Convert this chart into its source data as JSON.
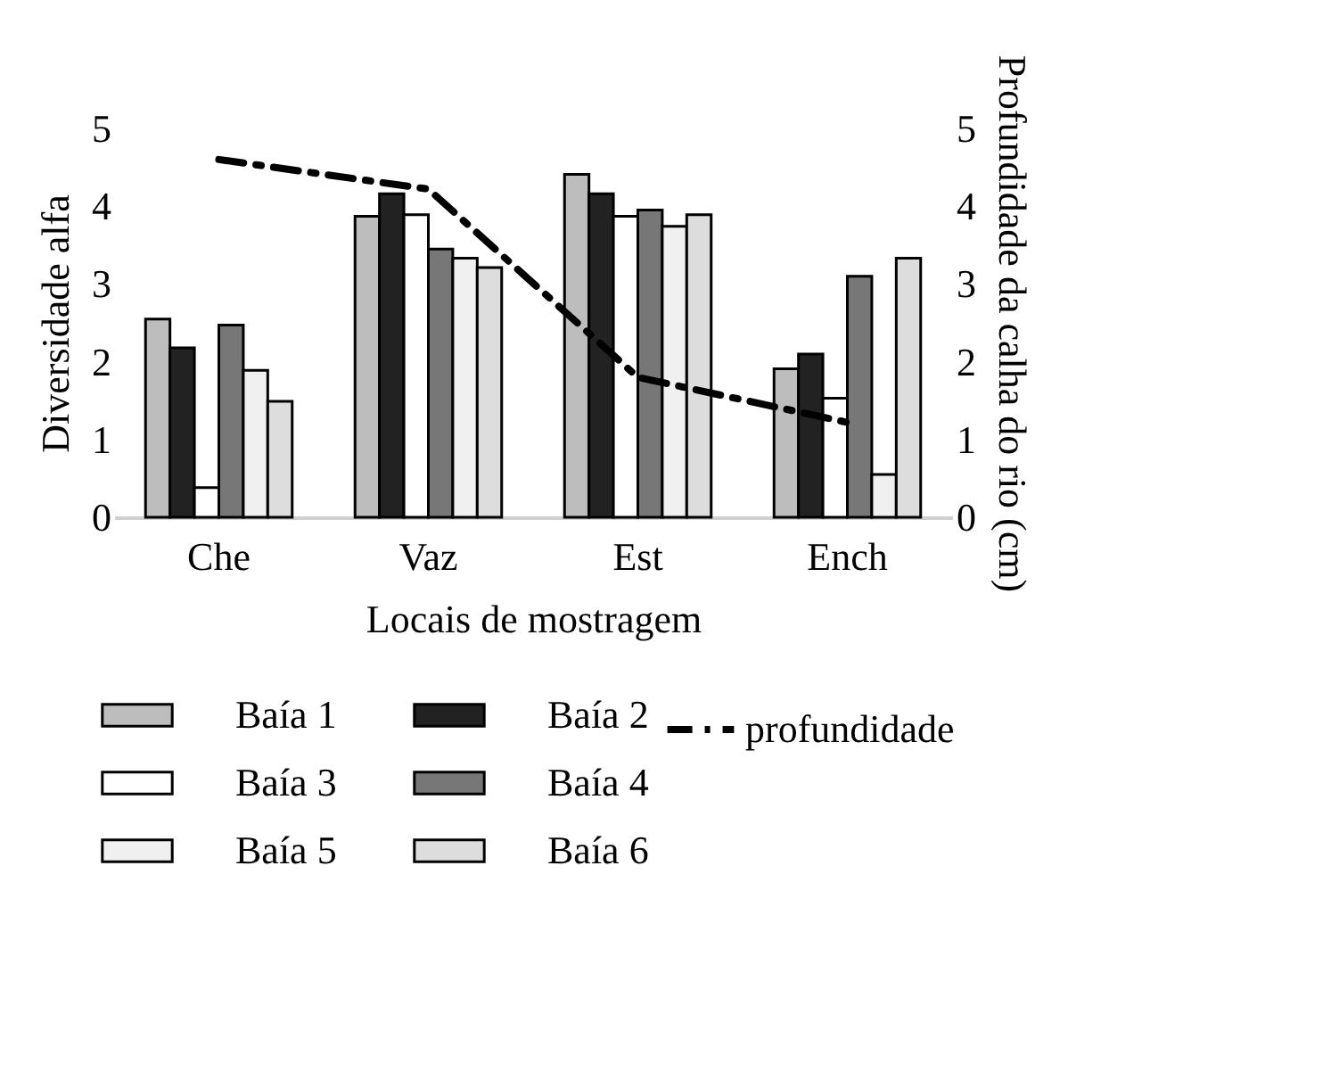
{
  "chart_data": {
    "type": "bar",
    "xlabel": "Locais de mostragem",
    "ylabel": "Diversidade alfa",
    "y2label": "Profundidade da calha do rio (cm)",
    "categories": [
      "Che",
      "Vaz",
      "Est",
      "Ench"
    ],
    "ylim": [
      0,
      5
    ],
    "yticks": [
      0,
      1,
      2,
      3,
      4,
      5
    ],
    "y2lim": [
      0,
      5
    ],
    "y2ticks": [
      0,
      1,
      2,
      3,
      4,
      5
    ],
    "grid": false,
    "legend": "bottom",
    "series": [
      {
        "name": "Baía 1",
        "color": "#bdbdbd",
        "values": [
          2.55,
          3.87,
          4.41,
          1.91
        ]
      },
      {
        "name": "Baía 2",
        "color": "#222222",
        "values": [
          2.18,
          4.16,
          4.16,
          2.1
        ]
      },
      {
        "name": "Baía 3",
        "color": "#ffffff",
        "values": [
          0.38,
          3.89,
          3.87,
          1.53
        ]
      },
      {
        "name": "Baía 4",
        "color": "#777777",
        "values": [
          2.47,
          3.45,
          3.95,
          3.1
        ]
      },
      {
        "name": "Baía 5",
        "color": "#f0f0f0",
        "values": [
          1.89,
          3.33,
          3.74,
          0.55
        ]
      },
      {
        "name": "Baía 6",
        "color": "#dddddd",
        "values": [
          1.49,
          3.21,
          3.89,
          3.33
        ]
      },
      {
        "name": "profundidade",
        "type": "line",
        "axis": "y2",
        "color": "#000000",
        "line_style": "dashed",
        "marker": "none",
        "values": [
          4.6,
          4.22,
          1.8,
          1.22
        ]
      }
    ]
  }
}
